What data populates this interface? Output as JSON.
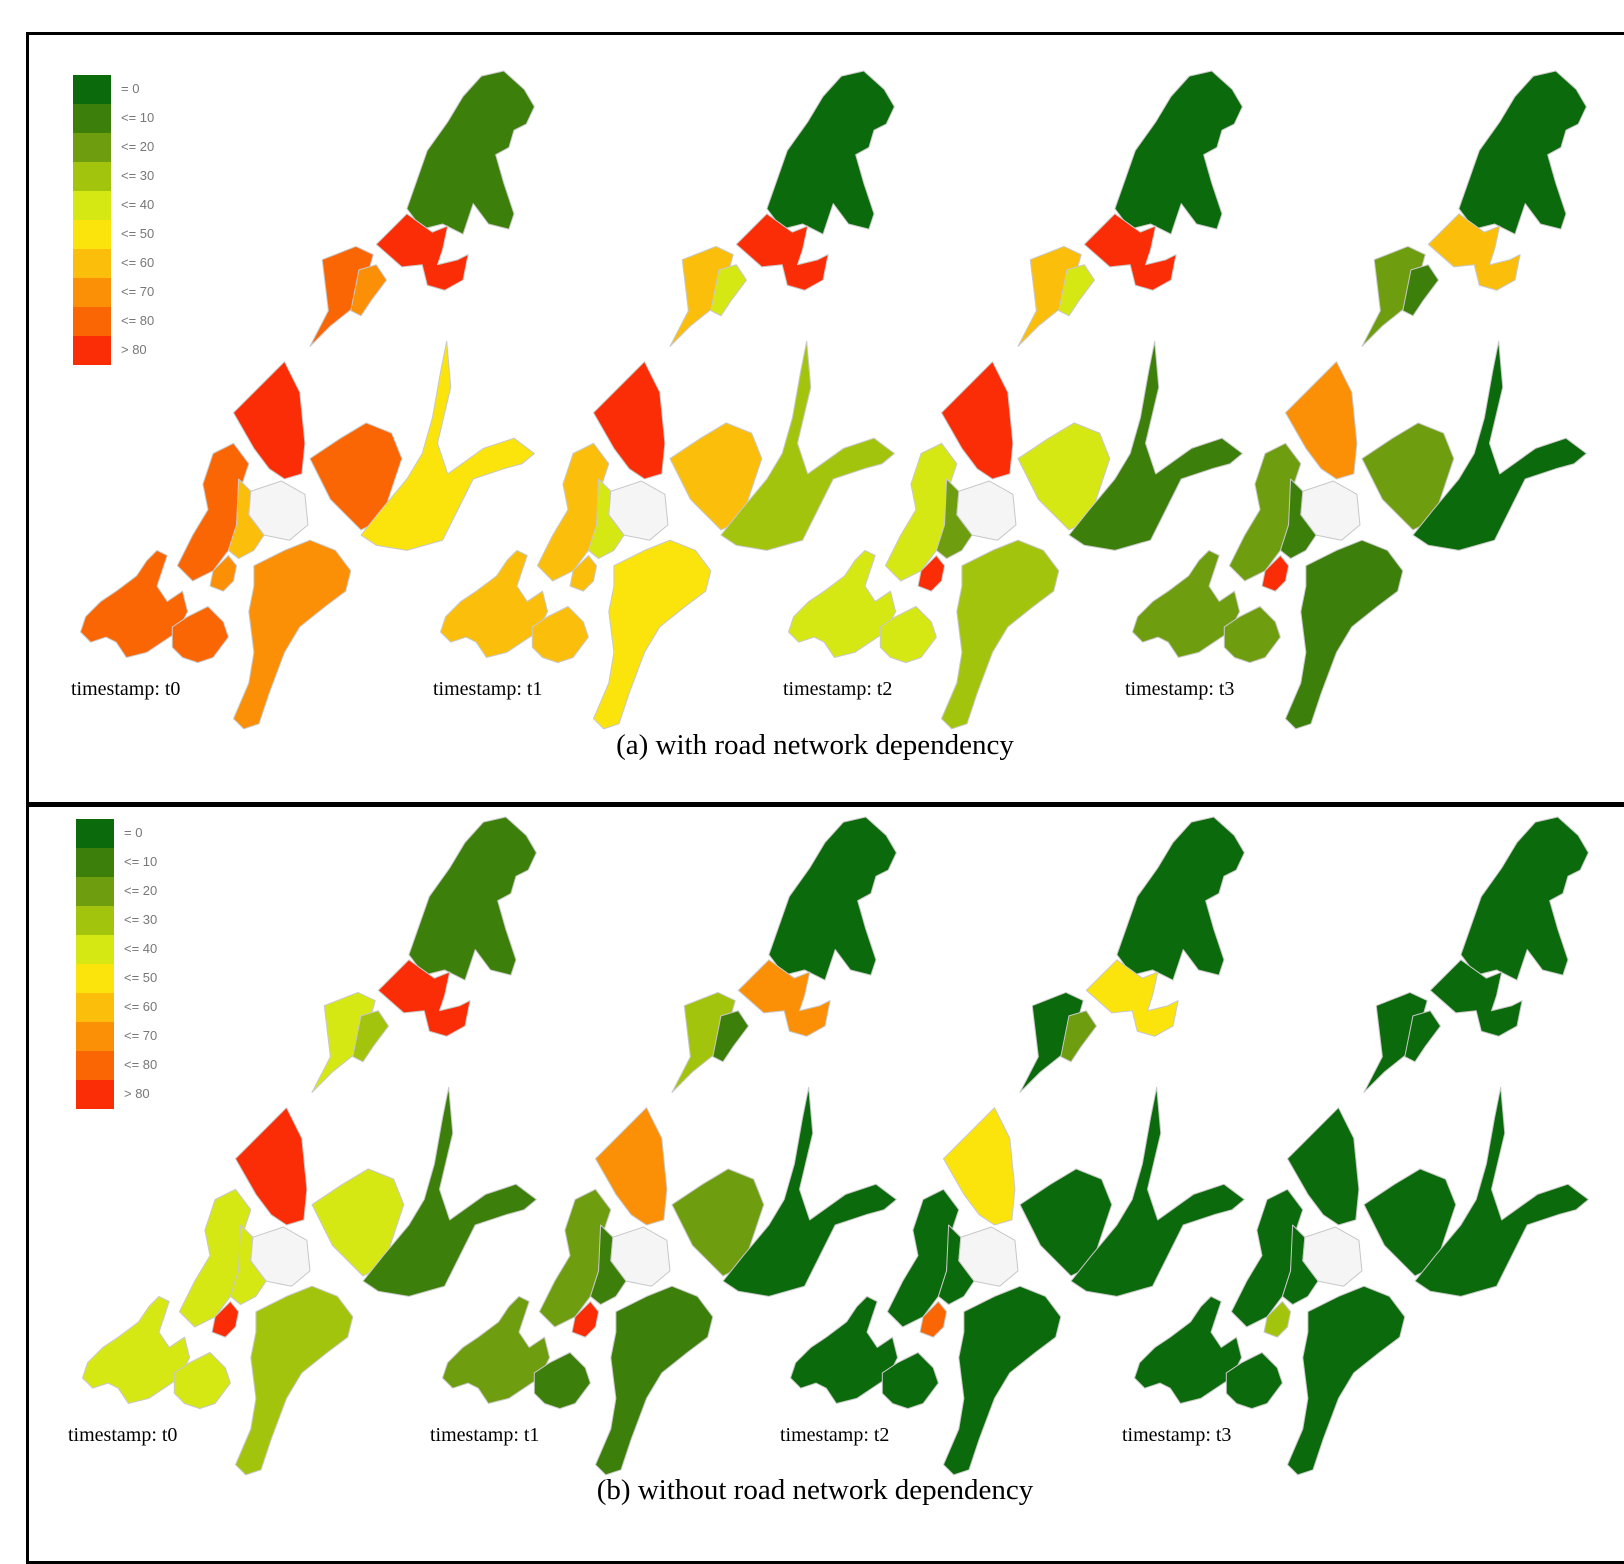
{
  "legend": [
    {
      "label": "= 0",
      "color": "#0b6a0b"
    },
    {
      "label": "<= 10",
      "color": "#3c7f0a"
    },
    {
      "label": "<= 20",
      "color": "#6e9e0f"
    },
    {
      "label": "<= 30",
      "color": "#a3c40d"
    },
    {
      "label": "<= 40",
      "color": "#d6e814"
    },
    {
      "label": "<= 50",
      "color": "#fbe40b"
    },
    {
      "label": "<= 60",
      "color": "#fbbf0b"
    },
    {
      "label": "<= 70",
      "color": "#fb8f06"
    },
    {
      "label": "<= 80",
      "color": "#fb6604"
    },
    {
      "label": "> 80",
      "color": "#fb2d06"
    }
  ],
  "panels": [
    {
      "caption": "(a) with road network dependency",
      "maps": [
        {
          "timestamp": "timestamp: t0",
          "levels": {
            "north": 1,
            "upper": 9,
            "mid1": 8,
            "mid2": 7,
            "center": 9,
            "wing": 8,
            "westA": 8,
            "westB": 6,
            "cluster": 8,
            "southSpur": 7,
            "far": 8,
            "east": 5,
            "southLobe": 7
          }
        },
        {
          "timestamp": "timestamp: t1",
          "levels": {
            "north": 0,
            "upper": 9,
            "mid1": 6,
            "mid2": 4,
            "center": 9,
            "wing": 6,
            "westA": 6,
            "westB": 4,
            "cluster": 6,
            "southSpur": 6,
            "far": 6,
            "east": 3,
            "southLobe": 5
          }
        },
        {
          "timestamp": "timestamp: t2",
          "levels": {
            "north": 0,
            "upper": 9,
            "mid1": 6,
            "mid2": 4,
            "center": 9,
            "wing": 4,
            "westA": 4,
            "westB": 2,
            "cluster": 4,
            "southSpur": 9,
            "far": 4,
            "east": 1,
            "southLobe": 3
          }
        },
        {
          "timestamp": "timestamp: t3",
          "levels": {
            "north": 0,
            "upper": 6,
            "mid1": 2,
            "mid2": 1,
            "center": 7,
            "wing": 2,
            "westA": 2,
            "westB": 1,
            "cluster": 2,
            "southSpur": 9,
            "far": 2,
            "east": 0,
            "southLobe": 1
          }
        }
      ]
    },
    {
      "caption": "(b) without road network dependency",
      "maps": [
        {
          "timestamp": "timestamp: t0",
          "levels": {
            "north": 1,
            "upper": 9,
            "mid1": 4,
            "mid2": 3,
            "center": 9,
            "wing": 4,
            "westA": 4,
            "westB": 4,
            "cluster": 4,
            "southSpur": 9,
            "far": 4,
            "east": 1,
            "southLobe": 3
          }
        },
        {
          "timestamp": "timestamp: t1",
          "levels": {
            "north": 0,
            "upper": 7,
            "mid1": 3,
            "mid2": 1,
            "center": 7,
            "wing": 2,
            "westA": 2,
            "westB": 1,
            "cluster": 1,
            "southSpur": 9,
            "far": 2,
            "east": 0,
            "southLobe": 1
          }
        },
        {
          "timestamp": "timestamp: t2",
          "levels": {
            "north": 0,
            "upper": 5,
            "mid1": 0,
            "mid2": 2,
            "center": 5,
            "wing": 0,
            "westA": 0,
            "westB": 0,
            "cluster": 0,
            "southSpur": 8,
            "far": 0,
            "east": 0,
            "southLobe": 0
          }
        },
        {
          "timestamp": "timestamp: t3",
          "levels": {
            "north": 0,
            "upper": 0,
            "mid1": 0,
            "mid2": 0,
            "center": 0,
            "wing": 0,
            "westA": 0,
            "westB": 0,
            "cluster": 0,
            "southSpur": 3,
            "far": 0,
            "east": 0,
            "southLobe": 0
          }
        }
      ]
    }
  ],
  "colors": {
    "border": "#000000",
    "hole": "#f5f5f5",
    "region_stroke": "#c8c8c8"
  }
}
